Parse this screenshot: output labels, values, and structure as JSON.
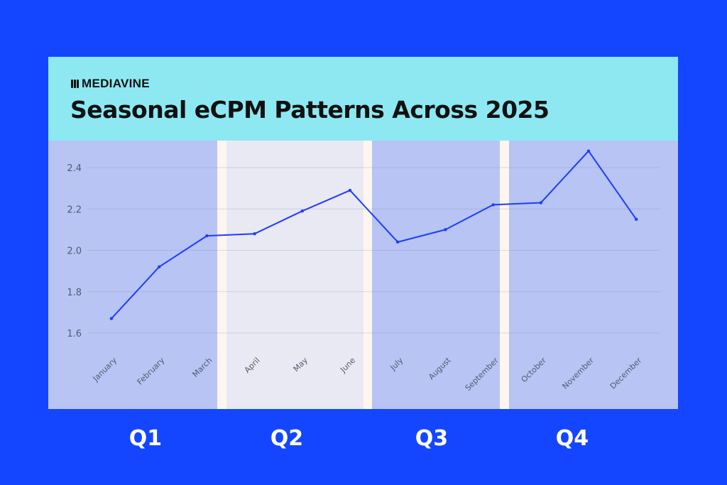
{
  "brand": "MEDIAVINE",
  "title": "Seasonal eCPM Patterns Across 2025",
  "colors": {
    "background": "#1446ff",
    "header": "#8de8f2",
    "band_q": "#b7c4f4",
    "band_q2": "#e9e9f4",
    "separator": "#fdf5ef",
    "line": "#1f3cff"
  },
  "chart_data": {
    "type": "line",
    "title": "Seasonal eCPM Patterns Across 2025",
    "xlabel": "",
    "ylabel": "",
    "categories": [
      "January",
      "February",
      "March",
      "April",
      "May",
      "June",
      "July",
      "August",
      "September",
      "October",
      "November",
      "December"
    ],
    "series": [
      {
        "name": "eCPM",
        "values": [
          1.67,
          1.92,
          2.07,
          2.08,
          2.19,
          2.29,
          2.04,
          2.1,
          2.22,
          2.23,
          2.48,
          2.15
        ]
      }
    ],
    "yticks": [
      "1.6",
      "1.8",
      "2.0",
      "2.2",
      "2.4"
    ],
    "ylim": [
      1.6,
      2.4
    ],
    "grid": true,
    "quarters": [
      {
        "label": "Q1",
        "months": [
          0,
          2
        ]
      },
      {
        "label": "Q2",
        "months": [
          3,
          5
        ]
      },
      {
        "label": "Q3",
        "months": [
          6,
          8
        ]
      },
      {
        "label": "Q4",
        "months": [
          9,
          11
        ]
      }
    ]
  }
}
